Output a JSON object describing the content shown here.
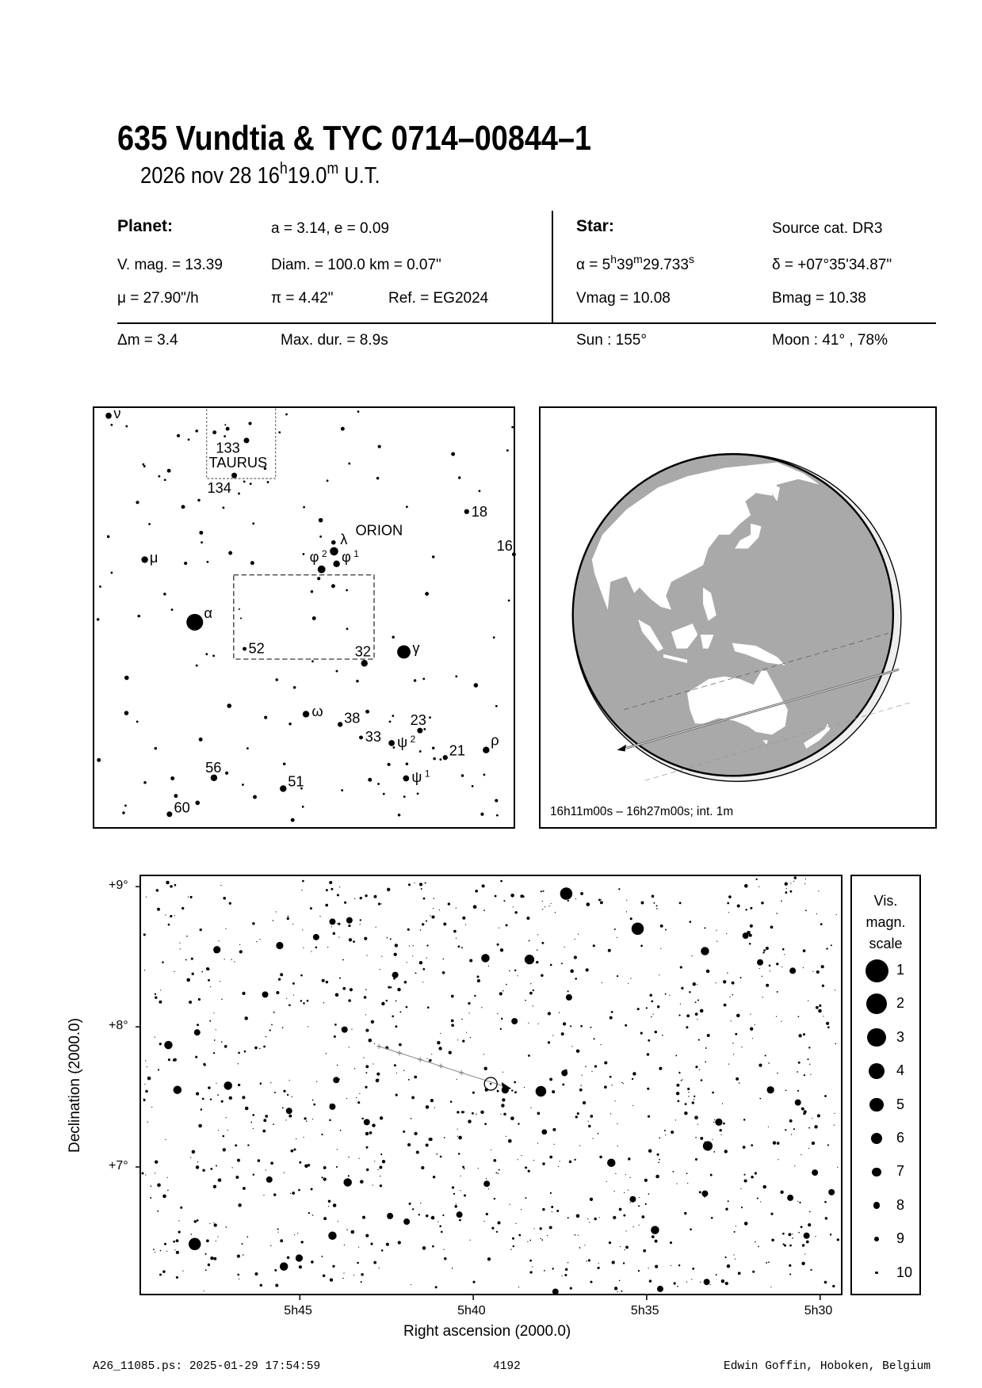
{
  "header": {
    "title": "635 Vundtia  &  TYC 0714–00844–1",
    "date": "2026 nov 28  16",
    "time_h": "h",
    "time_min": "19.0",
    "time_m": "m",
    "time_ut": " U.T."
  },
  "planet": {
    "heading": "Planet:",
    "orbit": "a = 3.14, e = 0.09",
    "vmag": "V. mag. = 13.39",
    "diam": "Diam. = 100.0 km = 0.07\"",
    "motion": "μ =  27.90\"/h",
    "parallax": "π =  4.42\"",
    "ref": "Ref. = EG2024"
  },
  "star": {
    "heading": "Star:",
    "source": "Source cat.  DR3",
    "ra_prefix": "α =  5",
    "ra_h": "h",
    "ra_min": "39",
    "ra_m": "m",
    "ra_sec": "29.733",
    "ra_s": "s",
    "dec": "δ = +07°35'34.87\"",
    "vmag": "Vmag = 10.08",
    "bmag": "Bmag = 10.38"
  },
  "event": {
    "delta_m": "Δm = 3.4",
    "max_dur": "Max. dur. = 8.9s",
    "sun": "Sun : 155°",
    "moon": "Moon :  41° , 78%"
  },
  "finder": {
    "constellations": [
      "TAURUS",
      "ORION"
    ],
    "labels": {
      "nu": "ν",
      "mu": "μ",
      "alpha": "α",
      "gamma": "γ",
      "lambda": "λ",
      "phi1": "φ",
      "phi1_sup": "1",
      "phi2": "φ",
      "phi2_sup": "2",
      "omega": "ω",
      "rho": "ρ",
      "psi1": "ψ",
      "psi1_sup": "1",
      "psi2": "ψ",
      "psi2_sup": "2",
      "n133": "133",
      "n134": "134",
      "n18": "18",
      "n16": "16",
      "n52": "52",
      "n32": "32",
      "n38": "38",
      "n33": "33",
      "n23": "23",
      "n21": "21",
      "n56": "56",
      "n51": "51",
      "n60": "60"
    }
  },
  "globe": {
    "caption": "16h11m00s – 16h27m00s; int.  1m",
    "colors": {
      "ocean": "#a9a9a9",
      "land": "#ffffff",
      "night": "#eeeeee"
    }
  },
  "chart_data": {
    "type": "scatter",
    "xlabel": "Right ascension (2000.0)",
    "ylabel": "Declination (2000.0)",
    "x_unit": "RA minutes after 5h",
    "xlim": [
      49.6,
      29.4
    ],
    "ylim": [
      6.09,
      9.08
    ],
    "x_ticks": [
      {
        "value": 45,
        "label": "5h45"
      },
      {
        "value": 40,
        "label": "5h40"
      },
      {
        "value": 35,
        "label": "5h35"
      },
      {
        "value": 30,
        "label": "5h30"
      }
    ],
    "y_ticks": [
      {
        "value": 9,
        "label": "+9°"
      },
      {
        "value": 8,
        "label": "+8°"
      },
      {
        "value": 7,
        "label": "+7°"
      }
    ],
    "target": {
      "ra_min": 39.496,
      "dec": 7.593
    },
    "asteroid_path": {
      "start": {
        "ra_min": 42.72,
        "dec": 7.86
      },
      "end": {
        "ra_min": 38.91,
        "dec": 7.56
      }
    },
    "stars": [
      [
        37.32,
        8.95,
        5
      ],
      [
        35.26,
        8.7,
        5
      ],
      [
        48.03,
        6.45,
        5
      ],
      [
        38.05,
        7.54,
        5.8
      ],
      [
        38.38,
        8.48,
        6.3
      ],
      [
        33.24,
        7.15,
        6.3
      ],
      [
        48.79,
        7.87,
        7
      ],
      [
        48.53,
        7.55,
        7
      ],
      [
        44.06,
        6.51,
        7
      ],
      [
        45.46,
        6.29,
        7
      ],
      [
        43.62,
        6.89,
        7
      ],
      [
        33.32,
        8.54,
        7
      ],
      [
        34.76,
        6.55,
        7
      ],
      [
        39.65,
        8.49,
        7
      ],
      [
        36.02,
        7.03,
        7
      ],
      [
        47.07,
        7.58,
        7
      ],
      [
        32.92,
        7.32,
        7.5
      ],
      [
        45.02,
        6.35,
        7.5
      ],
      [
        47.39,
        8.55,
        7.5
      ],
      [
        45.58,
        8.58,
        7.5
      ],
      [
        31.43,
        7.55,
        7.5
      ],
      [
        32.15,
        8.65,
        8
      ],
      [
        31.73,
        8.46,
        8
      ],
      [
        30.79,
        8.4,
        8
      ],
      [
        30.64,
        7.46,
        8
      ],
      [
        33.27,
        6.18,
        8
      ],
      [
        34.61,
        6.13,
        8
      ],
      [
        37.63,
        6.11,
        8
      ],
      [
        42.25,
        8.37,
        8
      ],
      [
        43.57,
        8.76,
        8
      ],
      [
        44.06,
        8.75,
        8
      ],
      [
        44.53,
        8.64,
        8
      ],
      [
        47.96,
        7.96,
        8
      ],
      [
        46.0,
        8.23,
        8
      ],
      [
        45.31,
        7.4,
        8
      ],
      [
        43.07,
        7.32,
        8
      ],
      [
        39.61,
        6.88,
        8
      ],
      [
        40.4,
        6.66,
        8
      ],
      [
        42.4,
        6.65,
        8
      ],
      [
        41.92,
        6.61,
        8
      ],
      [
        37.37,
        7.67,
        8
      ],
      [
        38.81,
        8.04,
        8
      ],
      [
        35.4,
        6.77,
        8
      ],
      [
        30.86,
        6.78,
        8
      ],
      [
        30.15,
        6.96,
        8
      ],
      [
        29.67,
        6.82,
        8
      ],
      [
        30.39,
        6.51,
        8
      ],
      [
        33.32,
        6.81,
        8
      ],
      [
        37.24,
        8.21,
        8
      ],
      [
        45.88,
        6.91,
        8
      ],
      [
        43.95,
        7.62,
        8
      ],
      [
        44.06,
        7.43,
        8
      ],
      [
        43.71,
        7.98,
        8
      ],
      [
        39.08,
        7.55,
        7.5
      ],
      [
        37.95,
        7.25,
        8.5
      ]
    ],
    "magnitude_scale": {
      "title": [
        "Vis.",
        "magn.",
        "scale"
      ],
      "values": [
        1,
        2,
        3,
        4,
        5,
        6,
        7,
        8,
        9,
        10
      ]
    }
  },
  "footer": {
    "file": "A26_11085.ps: 2025-01-29 17:54:59",
    "number": "4192",
    "author": "Edwin Goffin, Hoboken, Belgium"
  }
}
